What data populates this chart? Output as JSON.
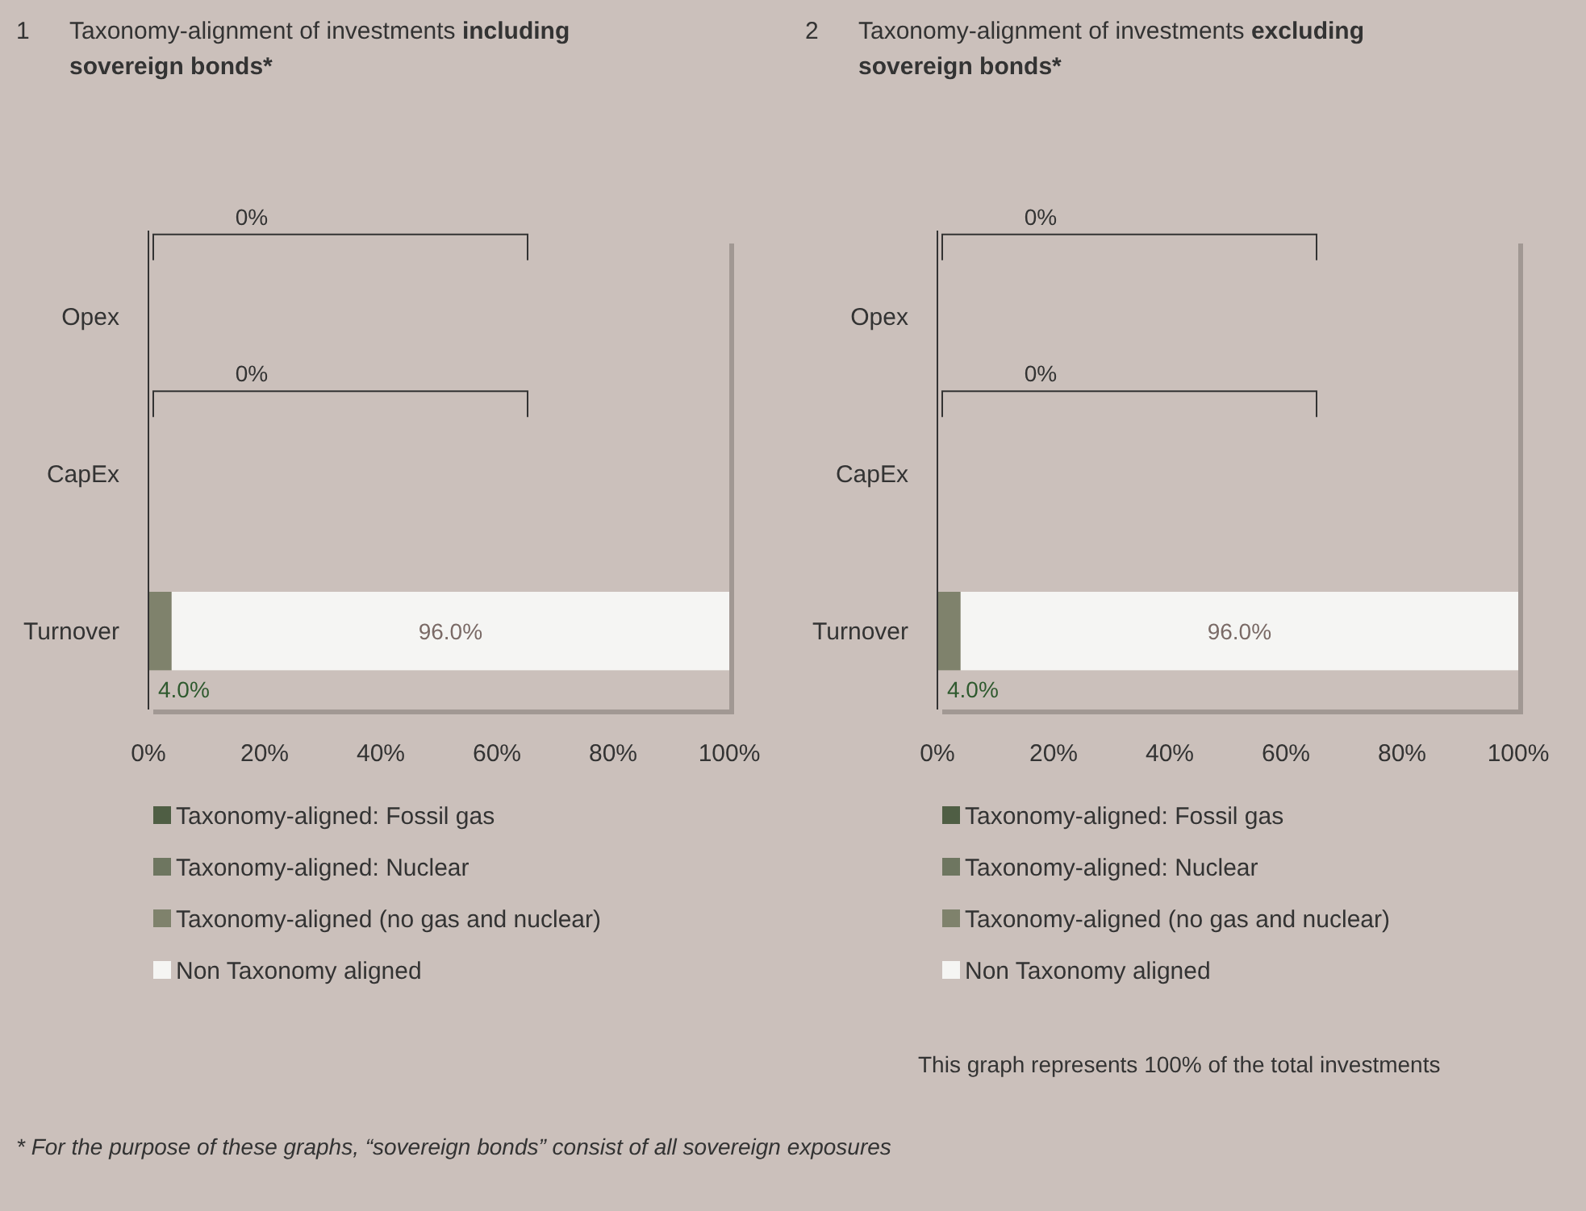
{
  "chart_data": [
    {
      "type": "bar",
      "orientation": "horizontal",
      "stacked": true,
      "title": "Taxonomy-alignment of investments",
      "subtitle": "including sovereign bonds*",
      "categories": [
        "Opex",
        "CapEx",
        "Turnover"
      ],
      "series": [
        {
          "name": "Taxonomy-aligned: Fossil gas",
          "color": "#4f5e44",
          "values": [
            0,
            0,
            0
          ]
        },
        {
          "name": "Taxonomy-aligned: Nuclear",
          "color": "#6e7660",
          "values": [
            0,
            0,
            0
          ]
        },
        {
          "name": "Taxonomy-aligned (no gas and nuclear)",
          "color": "#7f826c",
          "values": [
            0,
            0,
            4.0
          ],
          "value_labels": [
            null,
            null,
            "4.0%"
          ]
        },
        {
          "name": "Non Taxonomy aligned",
          "color": "#f5f5f3",
          "values": [
            null,
            null,
            96.0
          ],
          "value_labels": [
            null,
            null,
            "96.0%"
          ]
        }
      ],
      "xlim": [
        0,
        100
      ],
      "xticks": [
        {
          "value": 0,
          "label": "0%"
        },
        {
          "value": 20,
          "label": "20%"
        },
        {
          "value": 40,
          "label": "40%"
        },
        {
          "value": 60,
          "label": "60%"
        },
        {
          "value": 80,
          "label": "80%"
        },
        {
          "value": 100,
          "label": "100%"
        }
      ],
      "legend": "bottom",
      "grid": false,
      "annotations": [
        "1",
        "0%",
        "0%"
      ]
    },
    {
      "type": "bar",
      "orientation": "horizontal",
      "stacked": true,
      "title": "Taxonomy-alignment of investments",
      "subtitle": "excluding sovereign bonds*",
      "categories": [
        "Opex",
        "CapEx",
        "Turnover"
      ],
      "series": [
        {
          "name": "Taxonomy-aligned: Fossil gas",
          "color": "#4f5e44",
          "values": [
            0,
            0,
            0
          ]
        },
        {
          "name": "Taxonomy-aligned: Nuclear",
          "color": "#6e7660",
          "values": [
            0,
            0,
            0
          ]
        },
        {
          "name": "Taxonomy-aligned (no gas and nuclear)",
          "color": "#7f826c",
          "values": [
            0,
            0,
            4.0
          ],
          "value_labels": [
            null,
            null,
            "4.0%"
          ]
        },
        {
          "name": "Non Taxonomy aligned",
          "color": "#f5f5f3",
          "values": [
            null,
            null,
            96.0
          ],
          "value_labels": [
            null,
            null,
            "96.0%"
          ]
        }
      ],
      "xlim": [
        0,
        100
      ],
      "xticks": [
        {
          "value": 0,
          "label": "0%"
        },
        {
          "value": 20,
          "label": "20%"
        },
        {
          "value": 40,
          "label": "40%"
        },
        {
          "value": 60,
          "label": "60%"
        },
        {
          "value": 80,
          "label": "80%"
        },
        {
          "value": 100,
          "label": "100%"
        }
      ],
      "legend": "bottom",
      "grid": false,
      "annotations": [
        "2",
        "0%",
        "0%",
        "This graph represents 100% of the total investments",
        "* For the purpose of these graphs, “sovereign bonds” consist of all sovereign exposures"
      ]
    }
  ]
}
